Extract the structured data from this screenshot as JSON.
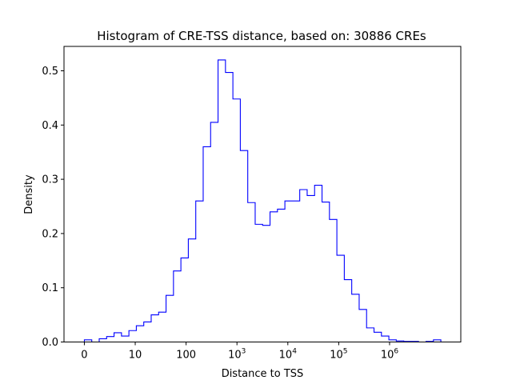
{
  "chart_data": {
    "type": "histogram",
    "title": "Histogram of CRE-TSS distance, based on: 30886 CREs",
    "xlabel": "Distance to TSS",
    "ylabel": "Density",
    "line_color": "#0000ff",
    "x_scale": "log10(distance + 1)",
    "xlim": [
      -0.4,
      7.4
    ],
    "ylim": [
      0,
      0.545
    ],
    "grid": false,
    "legend": "none",
    "x_ticks": [
      {
        "value": 0,
        "base": "0",
        "exp": ""
      },
      {
        "value": 1,
        "base": "10",
        "exp": ""
      },
      {
        "value": 2,
        "base": "100",
        "exp": ""
      },
      {
        "value": 3,
        "base": "10",
        "exp": "3"
      },
      {
        "value": 4,
        "base": "10",
        "exp": "4"
      },
      {
        "value": 5,
        "base": "10",
        "exp": "5"
      },
      {
        "value": 6,
        "base": "10",
        "exp": "6"
      }
    ],
    "y_ticks": [
      {
        "value": 0.0,
        "label": "0.0"
      },
      {
        "value": 0.1,
        "label": "0.1"
      },
      {
        "value": 0.2,
        "label": "0.2"
      },
      {
        "value": 0.3,
        "label": "0.3"
      },
      {
        "value": 0.4,
        "label": "0.4"
      },
      {
        "value": 0.5,
        "label": "0.5"
      }
    ],
    "bin_edges": [
      0,
      0.146,
      0.292,
      0.438,
      0.584,
      0.73,
      0.876,
      1.022,
      1.168,
      1.314,
      1.46,
      1.606,
      1.752,
      1.898,
      2.044,
      2.19,
      2.336,
      2.482,
      2.628,
      2.774,
      2.92,
      3.066,
      3.212,
      3.358,
      3.504,
      3.65,
      3.796,
      3.942,
      4.088,
      4.234,
      4.38,
      4.526,
      4.672,
      4.818,
      4.964,
      5.11,
      5.256,
      5.402,
      5.548,
      5.694,
      5.84,
      5.986,
      6.132,
      6.278,
      6.424,
      6.57,
      6.716,
      6.862,
      7.008
    ],
    "values": [
      0.004,
      0.0,
      0.006,
      0.01,
      0.017,
      0.011,
      0.021,
      0.03,
      0.037,
      0.05,
      0.055,
      0.086,
      0.131,
      0.155,
      0.19,
      0.26,
      0.36,
      0.405,
      0.52,
      0.497,
      0.448,
      0.353,
      0.257,
      0.217,
      0.215,
      0.24,
      0.245,
      0.26,
      0.26,
      0.281,
      0.27,
      0.289,
      0.258,
      0.226,
      0.16,
      0.115,
      0.088,
      0.06,
      0.026,
      0.018,
      0.011,
      0.004,
      0.002,
      0.001,
      0.001,
      0.0,
      0.001,
      0.004
    ]
  }
}
